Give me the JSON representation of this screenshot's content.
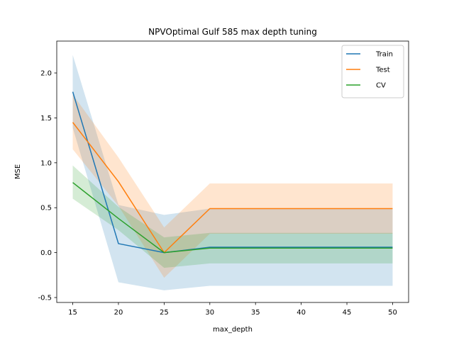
{
  "chart_data": {
    "type": "line",
    "title": "NPVOptimal Gulf 585 max depth tuning",
    "xlabel": "max_depth",
    "ylabel": "MSE",
    "xlim": [
      13.25,
      51.75
    ],
    "ylim": [
      -0.555,
      2.355
    ],
    "x_ticks": [
      15,
      20,
      25,
      30,
      35,
      40,
      45,
      50
    ],
    "y_ticks": [
      -0.5,
      0.0,
      0.5,
      1.0,
      1.5,
      2.0
    ],
    "x": [
      15,
      20,
      25,
      30,
      50
    ],
    "legend_position": "top-right",
    "grid": false,
    "series": [
      {
        "name": "Train",
        "color": "#1f77b4",
        "values": [
          1.79,
          0.1,
          0.0,
          0.06,
          0.06
        ],
        "lower": [
          1.39,
          -0.33,
          -0.42,
          -0.37,
          -0.37
        ],
        "upper": [
          2.2,
          0.53,
          0.42,
          0.49,
          0.49
        ]
      },
      {
        "name": "Test",
        "color": "#ff7f0e",
        "values": [
          1.45,
          0.79,
          0.0,
          0.49,
          0.49
        ],
        "lower": [
          1.15,
          0.52,
          -0.28,
          0.21,
          0.21
        ],
        "upper": [
          1.76,
          1.06,
          0.28,
          0.77,
          0.77
        ]
      },
      {
        "name": "CV",
        "color": "#2ca02c",
        "values": [
          0.78,
          0.38,
          0.0,
          0.05,
          0.05
        ],
        "lower": [
          0.6,
          0.25,
          -0.17,
          -0.12,
          -0.12
        ],
        "upper": [
          0.97,
          0.51,
          0.17,
          0.22,
          0.22
        ]
      }
    ]
  }
}
